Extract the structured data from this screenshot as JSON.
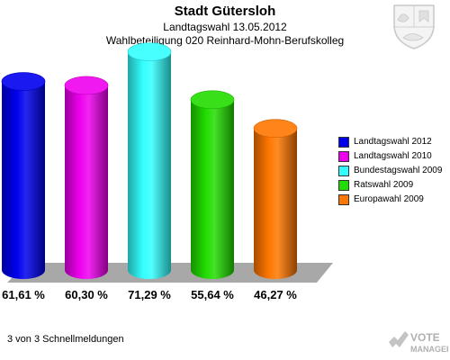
{
  "header": {
    "title": "Stadt Gütersloh",
    "subtitle": "Landtagswahl 13.05.2012",
    "subsubtitle": "Wahlbeteiligung 020 Reinhard-Mohn-Berufskolleg"
  },
  "chart_data": {
    "type": "bar",
    "categories": [
      "Landtagswahl 2012",
      "Landtagswahl 2010",
      "Bundestagswahl 2009",
      "Ratswahl 2009",
      "Europawahl 2009"
    ],
    "values": [
      61.61,
      60.3,
      71.29,
      55.64,
      46.27
    ],
    "value_labels": [
      "61,61 %",
      "60,30 %",
      "71,29 %",
      "55,64 %",
      "46,27 %"
    ],
    "colors": [
      "#0000ee",
      "#ee00ee",
      "#33ffff",
      "#22dd00",
      "#ff7700"
    ],
    "ylim": [
      0,
      80
    ],
    "legend_position": "right",
    "grid": false
  },
  "footer": {
    "note": "3 von 3 Schnellmeldungen",
    "logo_line1": "VOTE",
    "logo_line2": "MANAGER"
  }
}
